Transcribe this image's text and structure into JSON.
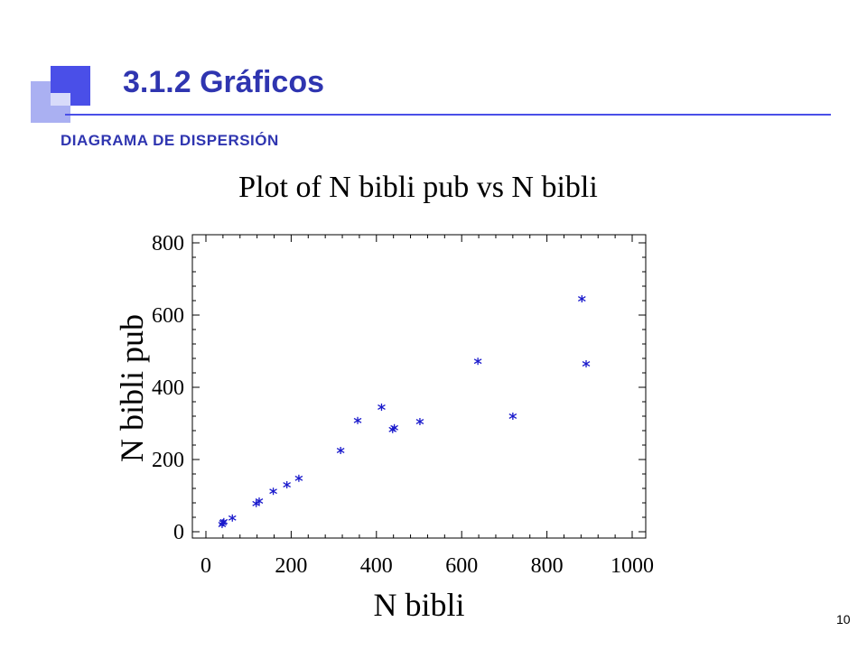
{
  "slide": {
    "title": "3.1.2 Gráficos",
    "subtitle": "DIAGRAMA DE DISPERSIÓN",
    "page_number": "10",
    "accent_color": "#2f35b0"
  },
  "chart_data": {
    "type": "scatter",
    "title": "Plot of N bibli pub vs N bibli",
    "xlabel": "N bibli",
    "ylabel": "N bibli pub",
    "xlim": [
      0,
      1000
    ],
    "ylim": [
      0,
      800
    ],
    "xticks": [
      0,
      200,
      400,
      600,
      800,
      1000
    ],
    "yticks": [
      0,
      200,
      400,
      600,
      800
    ],
    "grid": false,
    "marker_color": "#1a1acc",
    "points": [
      {
        "x": 38,
        "y": 20
      },
      {
        "x": 40,
        "y": 25
      },
      {
        "x": 42,
        "y": 28
      },
      {
        "x": 62,
        "y": 38
      },
      {
        "x": 118,
        "y": 78
      },
      {
        "x": 125,
        "y": 85
      },
      {
        "x": 158,
        "y": 112
      },
      {
        "x": 190,
        "y": 130
      },
      {
        "x": 218,
        "y": 148
      },
      {
        "x": 316,
        "y": 225
      },
      {
        "x": 356,
        "y": 308
      },
      {
        "x": 412,
        "y": 345
      },
      {
        "x": 438,
        "y": 283
      },
      {
        "x": 442,
        "y": 288
      },
      {
        "x": 502,
        "y": 305
      },
      {
        "x": 638,
        "y": 472
      },
      {
        "x": 720,
        "y": 320
      },
      {
        "x": 882,
        "y": 645
      },
      {
        "x": 892,
        "y": 465
      }
    ]
  }
}
